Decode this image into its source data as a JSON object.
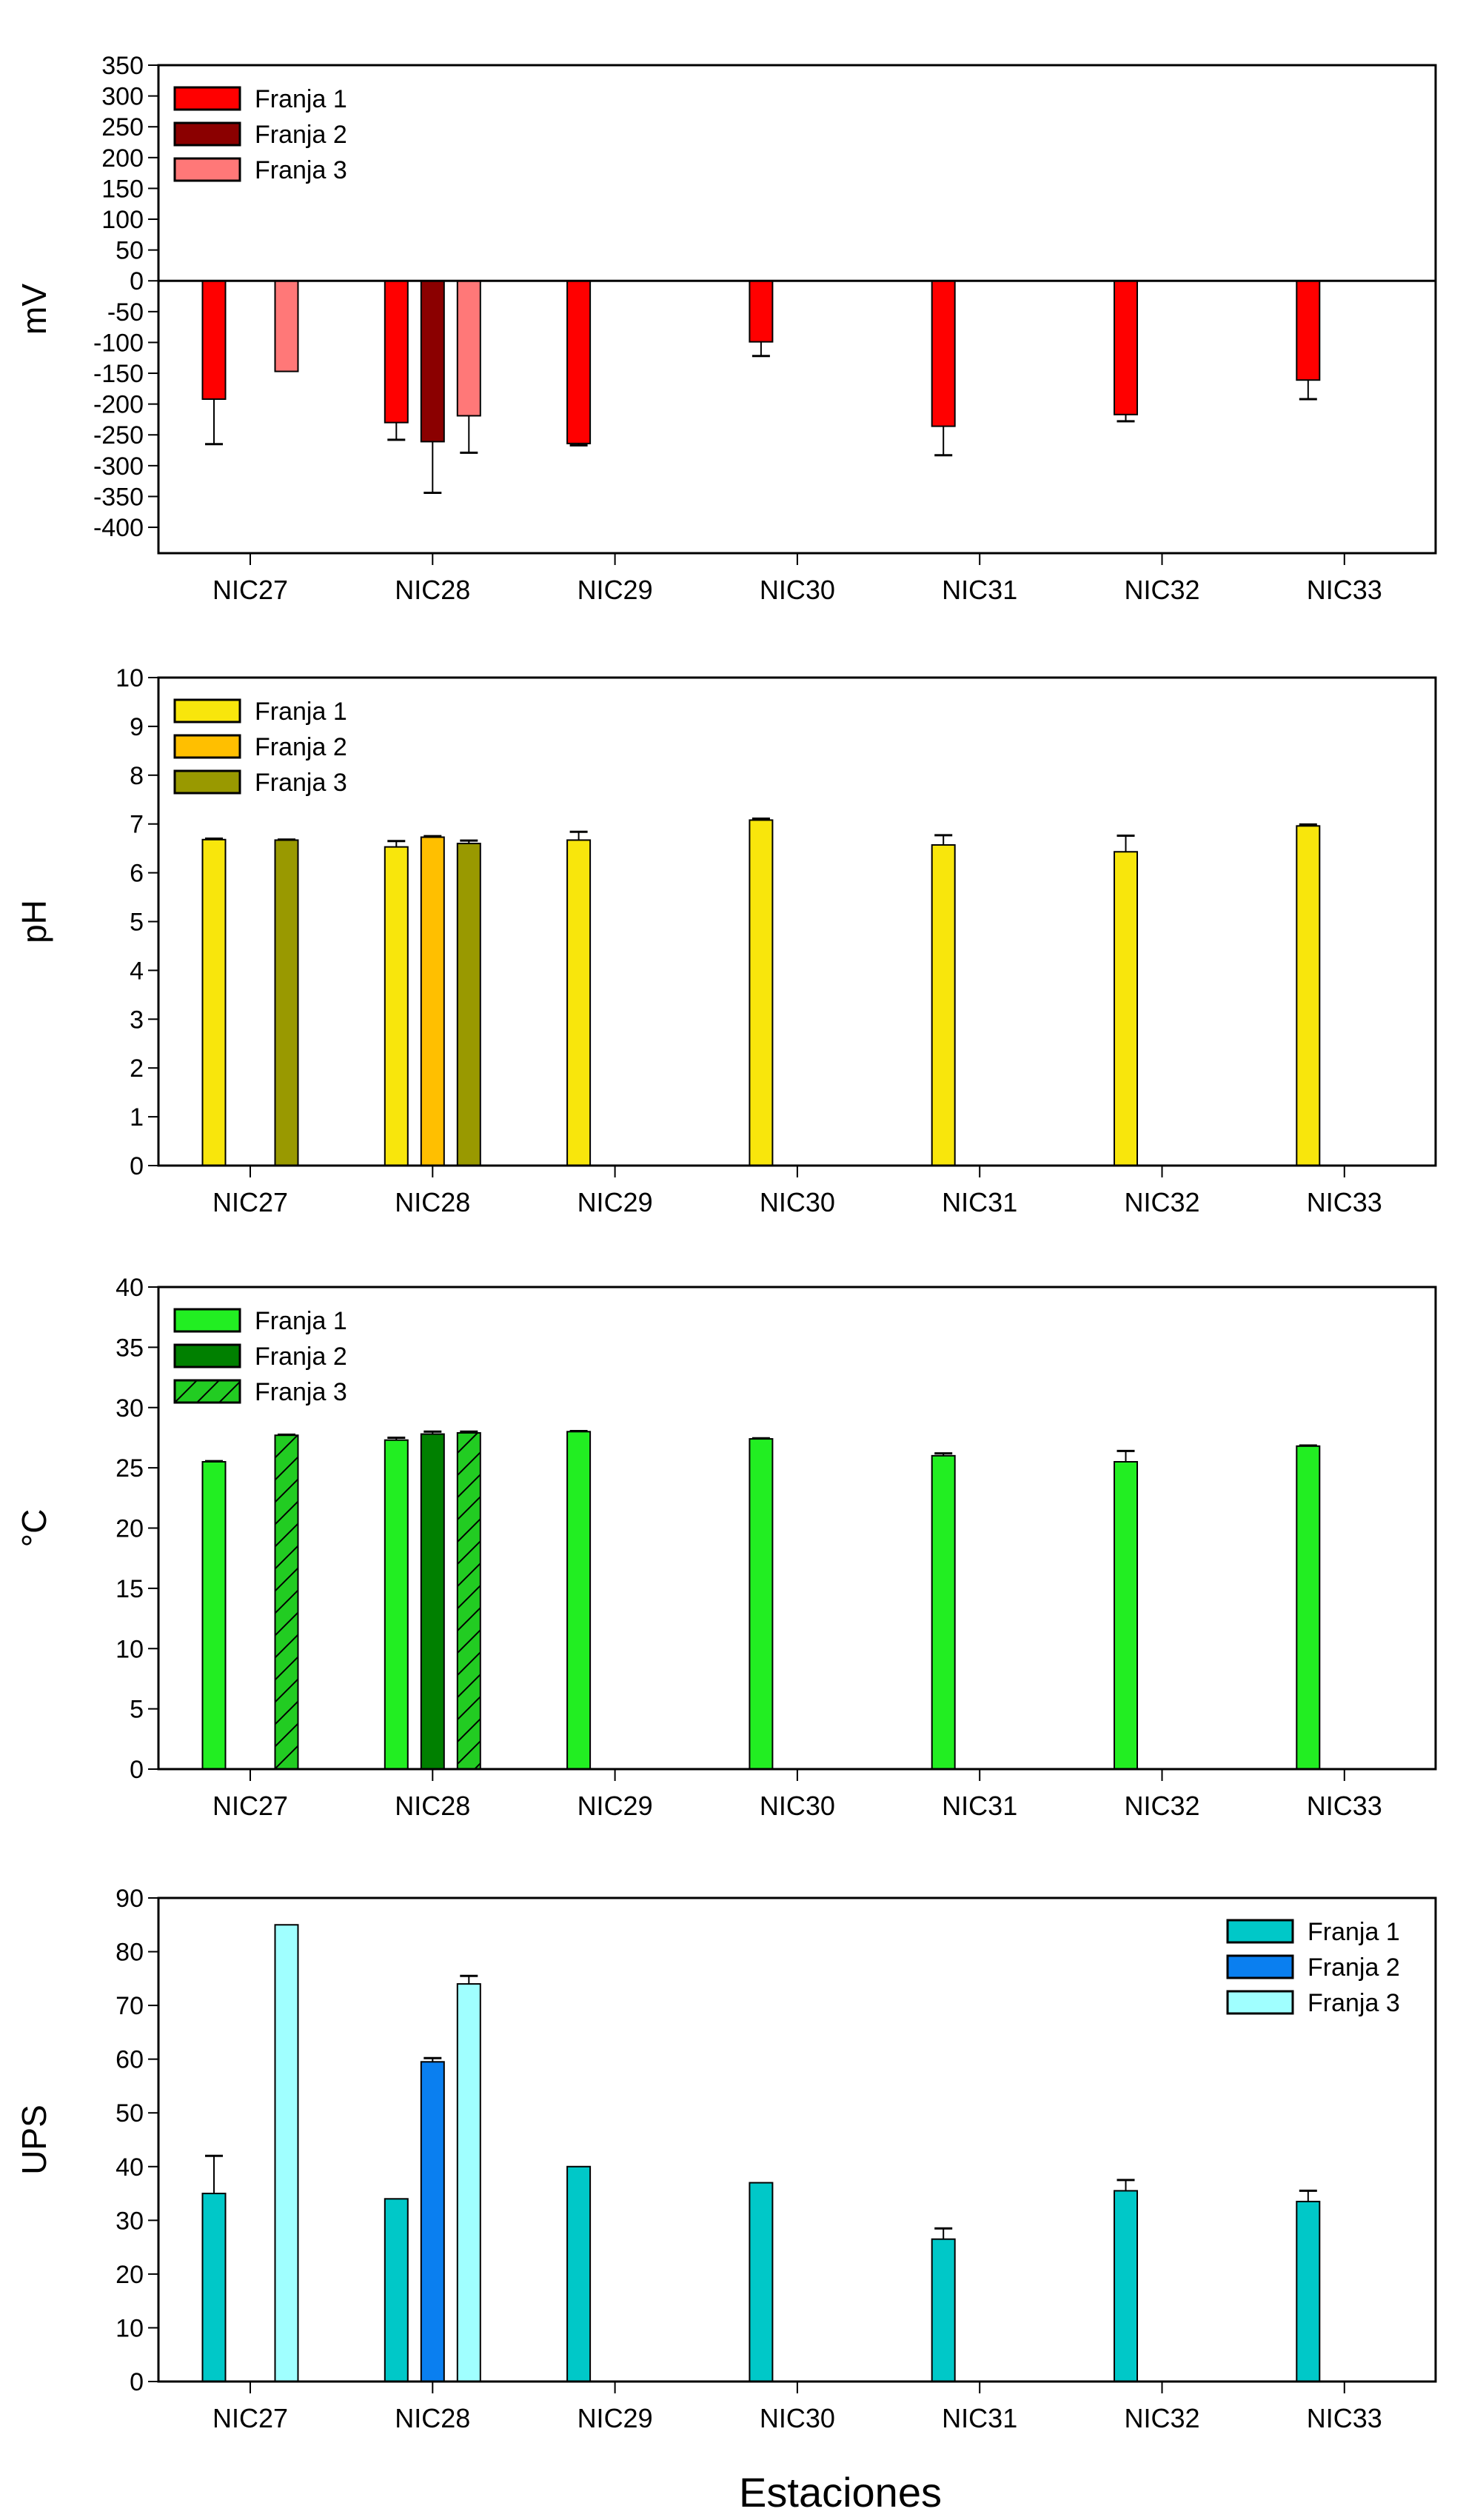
{
  "chart_data": [
    {
      "type": "bar",
      "ylabel": "mV",
      "ylim": [
        -442,
        350
      ],
      "yticks": [
        350,
        300,
        250,
        200,
        150,
        100,
        50,
        0,
        -50,
        -100,
        -150,
        -200,
        -250,
        -300,
        -350,
        -400
      ],
      "zero_line": true,
      "legend_position": "top-left",
      "categories": [
        "NIC27",
        "NIC28",
        "NIC29",
        "NIC30",
        "NIC31",
        "NIC32",
        "NIC33"
      ],
      "series": [
        {
          "name": "Franja 1",
          "color": "#ff0000",
          "values": [
            -192,
            -230,
            -264,
            -99,
            -236,
            -217,
            -161
          ],
          "errors": [
            73,
            28,
            3,
            23,
            47,
            11,
            31
          ]
        },
        {
          "name": "Franja 2",
          "color": "#8b0000",
          "values": [
            null,
            -261,
            null,
            null,
            null,
            null,
            null
          ],
          "errors": [
            null,
            83,
            null,
            null,
            null,
            null,
            null
          ]
        },
        {
          "name": "Franja 3",
          "color": "#ff7878",
          "values": [
            -147,
            -219,
            null,
            null,
            null,
            null,
            null
          ],
          "errors": [
            0,
            60,
            null,
            null,
            null,
            null,
            null
          ]
        }
      ]
    },
    {
      "type": "bar",
      "ylabel": "pH",
      "ylim": [
        0,
        10
      ],
      "yticks": [
        0,
        1,
        2,
        3,
        4,
        5,
        6,
        7,
        8,
        9,
        10
      ],
      "legend_position": "top-left",
      "categories": [
        "NIC27",
        "NIC28",
        "NIC29",
        "NIC30",
        "NIC31",
        "NIC32",
        "NIC33"
      ],
      "series": [
        {
          "name": "Franja 1",
          "color": "#f8e60c",
          "values": [
            6.68,
            6.53,
            6.67,
            7.08,
            6.57,
            6.43,
            6.96
          ],
          "errors": [
            0.02,
            0.12,
            0.17,
            0.03,
            0.2,
            0.33,
            0.03
          ]
        },
        {
          "name": "Franja 2",
          "color": "#ffbf00",
          "values": [
            null,
            6.73,
            null,
            null,
            null,
            null,
            null
          ],
          "errors": [
            null,
            0.02,
            null,
            null,
            null,
            null,
            null
          ]
        },
        {
          "name": "Franja 3",
          "color": "#999900",
          "values": [
            6.67,
            6.6,
            null,
            null,
            null,
            null,
            null
          ],
          "errors": [
            0.01,
            0.06,
            null,
            null,
            null,
            null,
            null
          ]
        }
      ]
    },
    {
      "type": "bar",
      "ylabel": "°C",
      "ylim": [
        0,
        40
      ],
      "yticks": [
        0,
        5,
        10,
        15,
        20,
        25,
        30,
        35,
        40
      ],
      "legend_position": "top-left",
      "categories": [
        "NIC27",
        "NIC28",
        "NIC29",
        "NIC30",
        "NIC31",
        "NIC32",
        "NIC33"
      ],
      "series": [
        {
          "name": "Franja 1",
          "color": "#22ee22",
          "values": [
            25.5,
            27.3,
            28.0,
            27.4,
            26.0,
            25.5,
            26.8
          ],
          "errors": [
            0.05,
            0.2,
            0.05,
            0.05,
            0.2,
            0.9,
            0.05
          ]
        },
        {
          "name": "Franja 2",
          "color": "#008000",
          "values": [
            null,
            27.8,
            null,
            null,
            null,
            null,
            null
          ],
          "errors": [
            null,
            0.2,
            null,
            null,
            null,
            null,
            null
          ]
        },
        {
          "name": "Franja 3",
          "color": "#22cc22",
          "hatch": true,
          "values": [
            27.7,
            27.9,
            null,
            null,
            null,
            null,
            null
          ],
          "errors": [
            0.05,
            0.1,
            null,
            null,
            null,
            null,
            null
          ]
        }
      ]
    },
    {
      "type": "bar",
      "ylabel": "UPS",
      "ylim": [
        0,
        90
      ],
      "yticks": [
        0,
        10,
        20,
        30,
        40,
        50,
        60,
        70,
        80,
        90
      ],
      "legend_position": "top-right",
      "categories": [
        "NIC27",
        "NIC28",
        "NIC29",
        "NIC30",
        "NIC31",
        "NIC32",
        "NIC33"
      ],
      "series": [
        {
          "name": "Franja 1",
          "color": "#00c8c8",
          "values": [
            35,
            34,
            40,
            37,
            26.5,
            35.5,
            33.5
          ],
          "errors": [
            7,
            0,
            0,
            0,
            2,
            2,
            2
          ]
        },
        {
          "name": "Franja 2",
          "color": "#0a7ff0",
          "values": [
            null,
            59.5,
            null,
            null,
            null,
            null,
            null
          ],
          "errors": [
            null,
            0.7,
            null,
            null,
            null,
            null,
            null
          ]
        },
        {
          "name": "Franja 3",
          "color": "#a0ffff",
          "values": [
            85,
            74,
            null,
            null,
            null,
            null,
            null
          ],
          "errors": [
            0,
            1.5,
            null,
            null,
            null,
            null,
            null
          ]
        }
      ]
    }
  ],
  "xlabel": "Estaciones"
}
